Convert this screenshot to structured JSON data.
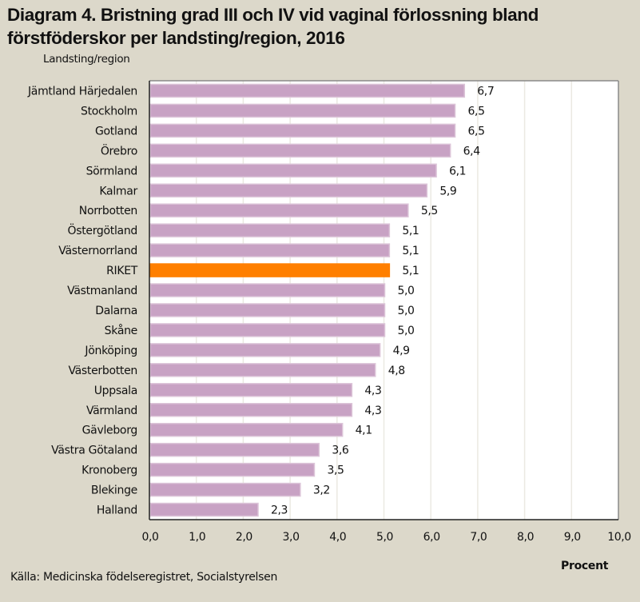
{
  "chart_data": {
    "type": "bar",
    "orientation": "horizontal",
    "title": "Diagram 4. Bristning grad III och IV vid vaginal förlossning bland förstföderskor per landsting/region, 2016",
    "ylabel": "Landsting/region",
    "xlabel": "Procent",
    "source": "Källa: Medicinska födelseregistret, Socialstyrelsen",
    "xlim": [
      0,
      10
    ],
    "xticks": [
      "0,0",
      "1,0",
      "2,0",
      "3,0",
      "4,0",
      "5,0",
      "6,0",
      "7,0",
      "8,0",
      "9,0",
      "10,0"
    ],
    "grid": "vertical",
    "categories": [
      "Jämtland Härjedalen",
      "Stockholm",
      "Gotland",
      "Örebro",
      "Sörmland",
      "Kalmar",
      "Norrbotten",
      "Östergötland",
      "Västernorrland",
      "RIKET",
      "Västmanland",
      "Dalarna",
      "Skåne",
      "Jönköping",
      "Västerbotten",
      "Uppsala",
      "Värmland",
      "Gävleborg",
      "Västra Götaland",
      "Kronoberg",
      "Blekinge",
      "Halland"
    ],
    "values": [
      6.7,
      6.5,
      6.5,
      6.4,
      6.1,
      5.9,
      5.5,
      5.1,
      5.1,
      5.1,
      5.0,
      5.0,
      5.0,
      4.9,
      4.8,
      4.3,
      4.3,
      4.1,
      3.6,
      3.5,
      3.2,
      2.3
    ],
    "value_labels": [
      "6,7",
      "6,5",
      "6,5",
      "6,4",
      "6,1",
      "5,9",
      "5,5",
      "5,1",
      "5,1",
      "5,1",
      "5,0",
      "5,0",
      "5,0",
      "4,9",
      "4,8",
      "4,3",
      "4,3",
      "4,1",
      "3,6",
      "3,5",
      "3,2",
      "2,3"
    ],
    "highlight_category": "RIKET",
    "colors": {
      "bar": "#c8a2c4",
      "bar_border": "#dcc4d8",
      "highlight": "#ff7f00",
      "background": "#dcd8ca",
      "plot_background": "#ffffff",
      "grid": "#ebe9e2"
    }
  }
}
